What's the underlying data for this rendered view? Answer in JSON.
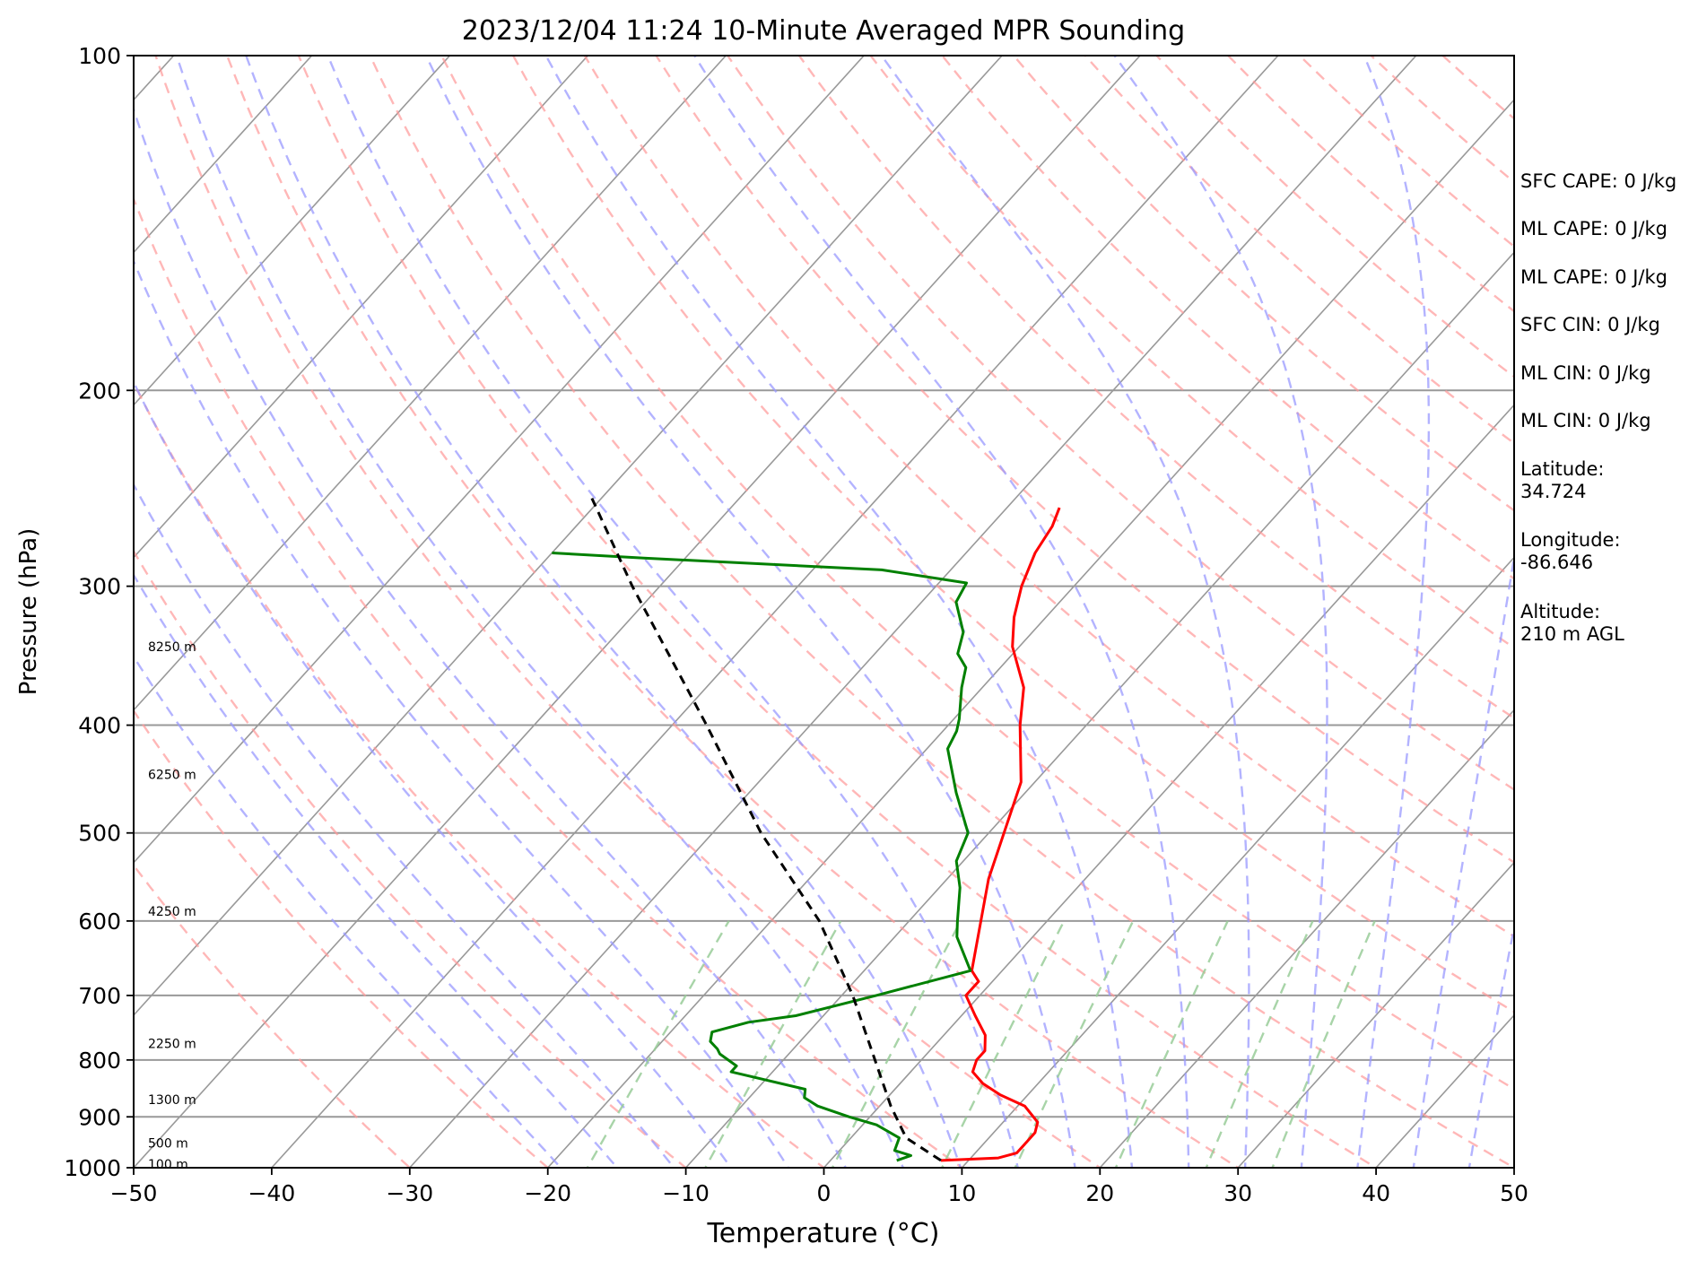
{
  "chart_data": {
    "type": "skew-t",
    "title": "2023/12/04 11:24 10-Minute Averaged MPR Sounding",
    "xlabel": "Temperature (°C)",
    "ylabel": "Pressure (hPa)",
    "xlim": [
      -50,
      50
    ],
    "ylim": [
      1000,
      100
    ],
    "y_scale": "log",
    "x_ticks": [
      "−50",
      "−40",
      "−30",
      "−20",
      "−10",
      "0",
      "10",
      "20",
      "30",
      "40",
      "50"
    ],
    "y_ticks": [
      "1000",
      "900",
      "800",
      "700",
      "600",
      "500",
      "400",
      "300",
      "200",
      "100"
    ],
    "y_tick_values": [
      1000,
      900,
      800,
      700,
      600,
      500,
      400,
      300,
      200,
      100
    ],
    "grid": true,
    "height_labels": [
      {
        "text": "100 m",
        "p": 993
      },
      {
        "text": "500 m",
        "p": 950
      },
      {
        "text": "1300 m",
        "p": 868
      },
      {
        "text": "2250 m",
        "p": 773
      },
      {
        "text": "4250 m",
        "p": 588
      },
      {
        "text": "6250 m",
        "p": 443
      },
      {
        "text": "8250 m",
        "p": 340
      }
    ],
    "colors": {
      "temperature": "#ff0000",
      "dewpoint": "#008000",
      "parcel": "#000000",
      "dry_adiabats": "#ff9999",
      "moist_adiabats": "#9999ff",
      "mixing_ratio": "#99cc99",
      "isotherms": "#999999"
    },
    "series": [
      {
        "key": "temperature",
        "points": [
          [
            985,
            8
          ],
          [
            980,
            12
          ],
          [
            970,
            13
          ],
          [
            950,
            13
          ],
          [
            930,
            13
          ],
          [
            910,
            12.5
          ],
          [
            880,
            10.5
          ],
          [
            860,
            8
          ],
          [
            840,
            6
          ],
          [
            820,
            4.5
          ],
          [
            800,
            4
          ],
          [
            785,
            4
          ],
          [
            760,
            3
          ],
          [
            730,
            1
          ],
          [
            700,
            -1
          ],
          [
            680,
            -1
          ],
          [
            665,
            -2.2
          ],
          [
            550,
            -7
          ],
          [
            450,
            -11
          ],
          [
            400,
            -14.8
          ],
          [
            370,
            -17
          ],
          [
            340,
            -20.5
          ],
          [
            320,
            -22.3
          ],
          [
            300,
            -23.8
          ],
          [
            280,
            -25
          ],
          [
            265,
            -25.5
          ],
          [
            255,
            -26.2
          ]
        ]
      },
      {
        "key": "dewpoint",
        "points": [
          [
            985,
            4.8
          ],
          [
            975,
            5.5
          ],
          [
            965,
            4
          ],
          [
            940,
            3.5
          ],
          [
            915,
            1
          ],
          [
            900,
            -1.5
          ],
          [
            880,
            -4.5
          ],
          [
            865,
            -6
          ],
          [
            850,
            -6.5
          ],
          [
            820,
            -13
          ],
          [
            810,
            -13
          ],
          [
            790,
            -15
          ],
          [
            782,
            -15.5
          ],
          [
            770,
            -16.5
          ],
          [
            755,
            -17
          ],
          [
            740,
            -15
          ],
          [
            730,
            -12
          ],
          [
            700,
            -7.5
          ],
          [
            665,
            -2.3
          ],
          [
            620,
            -5.5
          ],
          [
            600,
            -6.5
          ],
          [
            560,
            -8.5
          ],
          [
            530,
            -10.5
          ],
          [
            500,
            -11.5
          ],
          [
            460,
            -15
          ],
          [
            420,
            -18.5
          ],
          [
            405,
            -19
          ],
          [
            395,
            -19.6
          ],
          [
            370,
            -21.5
          ],
          [
            355,
            -22.5
          ],
          [
            345,
            -24
          ],
          [
            330,
            -25
          ],
          [
            310,
            -27.5
          ],
          [
            298,
            -28
          ],
          [
            290,
            -35
          ],
          [
            283,
            -53
          ],
          [
            280,
            -60
          ]
        ]
      },
      {
        "key": "parcel",
        "points": [
          [
            985,
            8
          ],
          [
            940,
            4
          ],
          [
            880,
            0.8
          ],
          [
            700,
            -9.2
          ],
          [
            600,
            -16.5
          ],
          [
            500,
            -26.5
          ],
          [
            400,
            -37.5
          ],
          [
            300,
            -52
          ],
          [
            250,
            -60.7
          ]
        ]
      }
    ],
    "stats": [
      "SFC CAPE: 0 J/kg",
      "ML CAPE: 0 J/kg",
      "ML CAPE: 0 J/kg",
      "SFC CIN: 0 J/kg",
      "ML CIN: 0 J/kg",
      "ML CIN: 0 J/kg",
      "Latitude:\n34.724",
      "Longitude:\n-86.646",
      "Altitude:\n210 m AGL"
    ]
  }
}
